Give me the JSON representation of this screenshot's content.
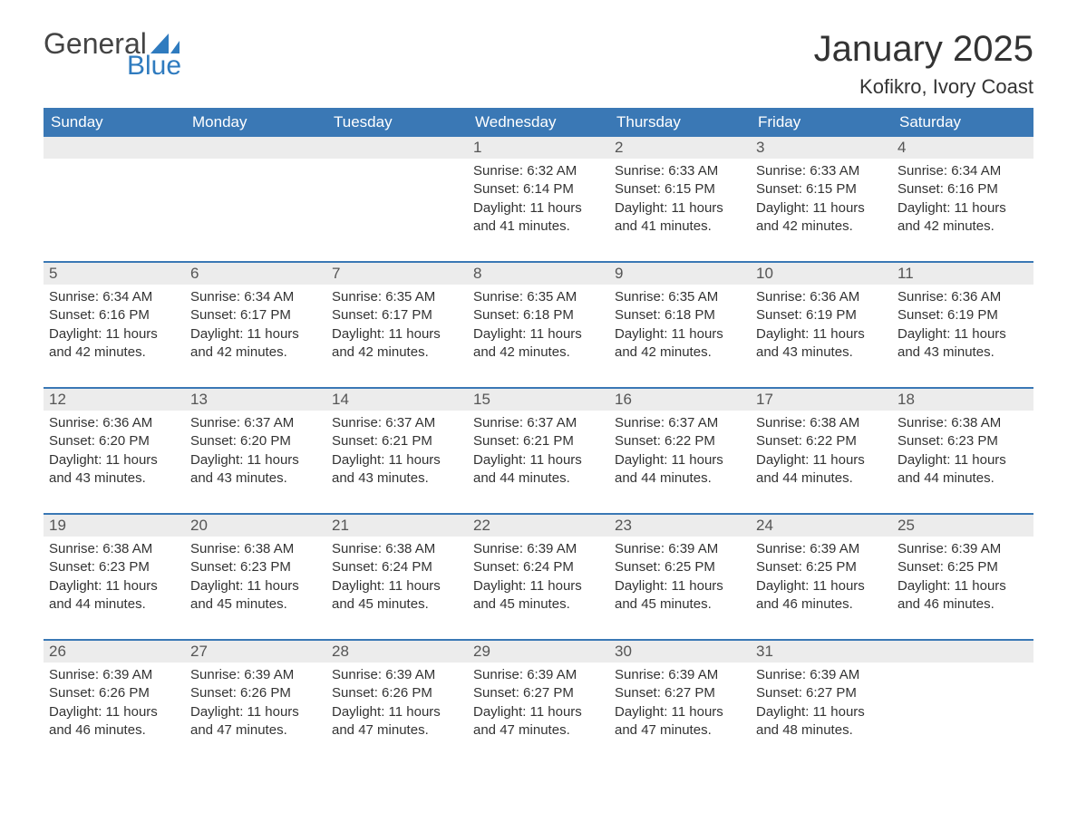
{
  "logo": {
    "text_general": "General",
    "text_blue": "Blue",
    "sail_color": "#2f7bbf",
    "general_color": "#444444",
    "blue_color": "#2f7bbf"
  },
  "header": {
    "month_title": "January 2025",
    "location": "Kofikro, Ivory Coast"
  },
  "styling": {
    "header_bg": "#3a78b5",
    "header_text": "#ffffff",
    "daynum_band_bg": "#ececec",
    "body_text": "#333333",
    "week_divider": "#3a78b5",
    "page_bg": "#ffffff",
    "title_fontsize": 40,
    "location_fontsize": 22,
    "weekday_fontsize": 17,
    "daynum_fontsize": 17,
    "cell_fontsize": 15
  },
  "weekdays": [
    "Sunday",
    "Monday",
    "Tuesday",
    "Wednesday",
    "Thursday",
    "Friday",
    "Saturday"
  ],
  "weeks": [
    [
      null,
      null,
      null,
      {
        "n": "1",
        "sunrise": "6:32 AM",
        "sunset": "6:14 PM",
        "daylight": "11 hours and 41 minutes."
      },
      {
        "n": "2",
        "sunrise": "6:33 AM",
        "sunset": "6:15 PM",
        "daylight": "11 hours and 41 minutes."
      },
      {
        "n": "3",
        "sunrise": "6:33 AM",
        "sunset": "6:15 PM",
        "daylight": "11 hours and 42 minutes."
      },
      {
        "n": "4",
        "sunrise": "6:34 AM",
        "sunset": "6:16 PM",
        "daylight": "11 hours and 42 minutes."
      }
    ],
    [
      {
        "n": "5",
        "sunrise": "6:34 AM",
        "sunset": "6:16 PM",
        "daylight": "11 hours and 42 minutes."
      },
      {
        "n": "6",
        "sunrise": "6:34 AM",
        "sunset": "6:17 PM",
        "daylight": "11 hours and 42 minutes."
      },
      {
        "n": "7",
        "sunrise": "6:35 AM",
        "sunset": "6:17 PM",
        "daylight": "11 hours and 42 minutes."
      },
      {
        "n": "8",
        "sunrise": "6:35 AM",
        "sunset": "6:18 PM",
        "daylight": "11 hours and 42 minutes."
      },
      {
        "n": "9",
        "sunrise": "6:35 AM",
        "sunset": "6:18 PM",
        "daylight": "11 hours and 42 minutes."
      },
      {
        "n": "10",
        "sunrise": "6:36 AM",
        "sunset": "6:19 PM",
        "daylight": "11 hours and 43 minutes."
      },
      {
        "n": "11",
        "sunrise": "6:36 AM",
        "sunset": "6:19 PM",
        "daylight": "11 hours and 43 minutes."
      }
    ],
    [
      {
        "n": "12",
        "sunrise": "6:36 AM",
        "sunset": "6:20 PM",
        "daylight": "11 hours and 43 minutes."
      },
      {
        "n": "13",
        "sunrise": "6:37 AM",
        "sunset": "6:20 PM",
        "daylight": "11 hours and 43 minutes."
      },
      {
        "n": "14",
        "sunrise": "6:37 AM",
        "sunset": "6:21 PM",
        "daylight": "11 hours and 43 minutes."
      },
      {
        "n": "15",
        "sunrise": "6:37 AM",
        "sunset": "6:21 PM",
        "daylight": "11 hours and 44 minutes."
      },
      {
        "n": "16",
        "sunrise": "6:37 AM",
        "sunset": "6:22 PM",
        "daylight": "11 hours and 44 minutes."
      },
      {
        "n": "17",
        "sunrise": "6:38 AM",
        "sunset": "6:22 PM",
        "daylight": "11 hours and 44 minutes."
      },
      {
        "n": "18",
        "sunrise": "6:38 AM",
        "sunset": "6:23 PM",
        "daylight": "11 hours and 44 minutes."
      }
    ],
    [
      {
        "n": "19",
        "sunrise": "6:38 AM",
        "sunset": "6:23 PM",
        "daylight": "11 hours and 44 minutes."
      },
      {
        "n": "20",
        "sunrise": "6:38 AM",
        "sunset": "6:23 PM",
        "daylight": "11 hours and 45 minutes."
      },
      {
        "n": "21",
        "sunrise": "6:38 AM",
        "sunset": "6:24 PM",
        "daylight": "11 hours and 45 minutes."
      },
      {
        "n": "22",
        "sunrise": "6:39 AM",
        "sunset": "6:24 PM",
        "daylight": "11 hours and 45 minutes."
      },
      {
        "n": "23",
        "sunrise": "6:39 AM",
        "sunset": "6:25 PM",
        "daylight": "11 hours and 45 minutes."
      },
      {
        "n": "24",
        "sunrise": "6:39 AM",
        "sunset": "6:25 PM",
        "daylight": "11 hours and 46 minutes."
      },
      {
        "n": "25",
        "sunrise": "6:39 AM",
        "sunset": "6:25 PM",
        "daylight": "11 hours and 46 minutes."
      }
    ],
    [
      {
        "n": "26",
        "sunrise": "6:39 AM",
        "sunset": "6:26 PM",
        "daylight": "11 hours and 46 minutes."
      },
      {
        "n": "27",
        "sunrise": "6:39 AM",
        "sunset": "6:26 PM",
        "daylight": "11 hours and 47 minutes."
      },
      {
        "n": "28",
        "sunrise": "6:39 AM",
        "sunset": "6:26 PM",
        "daylight": "11 hours and 47 minutes."
      },
      {
        "n": "29",
        "sunrise": "6:39 AM",
        "sunset": "6:27 PM",
        "daylight": "11 hours and 47 minutes."
      },
      {
        "n": "30",
        "sunrise": "6:39 AM",
        "sunset": "6:27 PM",
        "daylight": "11 hours and 47 minutes."
      },
      {
        "n": "31",
        "sunrise": "6:39 AM",
        "sunset": "6:27 PM",
        "daylight": "11 hours and 48 minutes."
      },
      null
    ]
  ],
  "labels": {
    "sunrise_prefix": "Sunrise: ",
    "sunset_prefix": "Sunset: ",
    "daylight_prefix": "Daylight: "
  }
}
